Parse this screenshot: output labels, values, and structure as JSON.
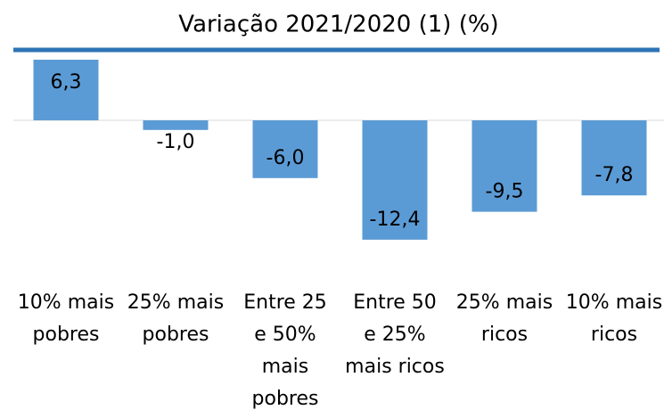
{
  "chart_data": {
    "type": "bar",
    "title": "Variação 2021/2020 (1) (%)",
    "categories": [
      [
        "10% mais",
        "pobres"
      ],
      [
        "25% mais",
        "pobres"
      ],
      [
        "Entre 25",
        "e 50%",
        "mais",
        "pobres"
      ],
      [
        "Entre 50",
        "e 25%",
        "mais ricos"
      ],
      [
        "25% mais",
        "ricos"
      ],
      [
        "10% mais",
        "ricos"
      ]
    ],
    "values": [
      6.3,
      -1.0,
      -6.0,
      -12.4,
      -9.5,
      -7.8
    ],
    "value_labels": [
      "6,3",
      "-1,0",
      "-6,0",
      "-12,4",
      "-9,5",
      "-7,8"
    ],
    "color": "#5b9bd5"
  }
}
